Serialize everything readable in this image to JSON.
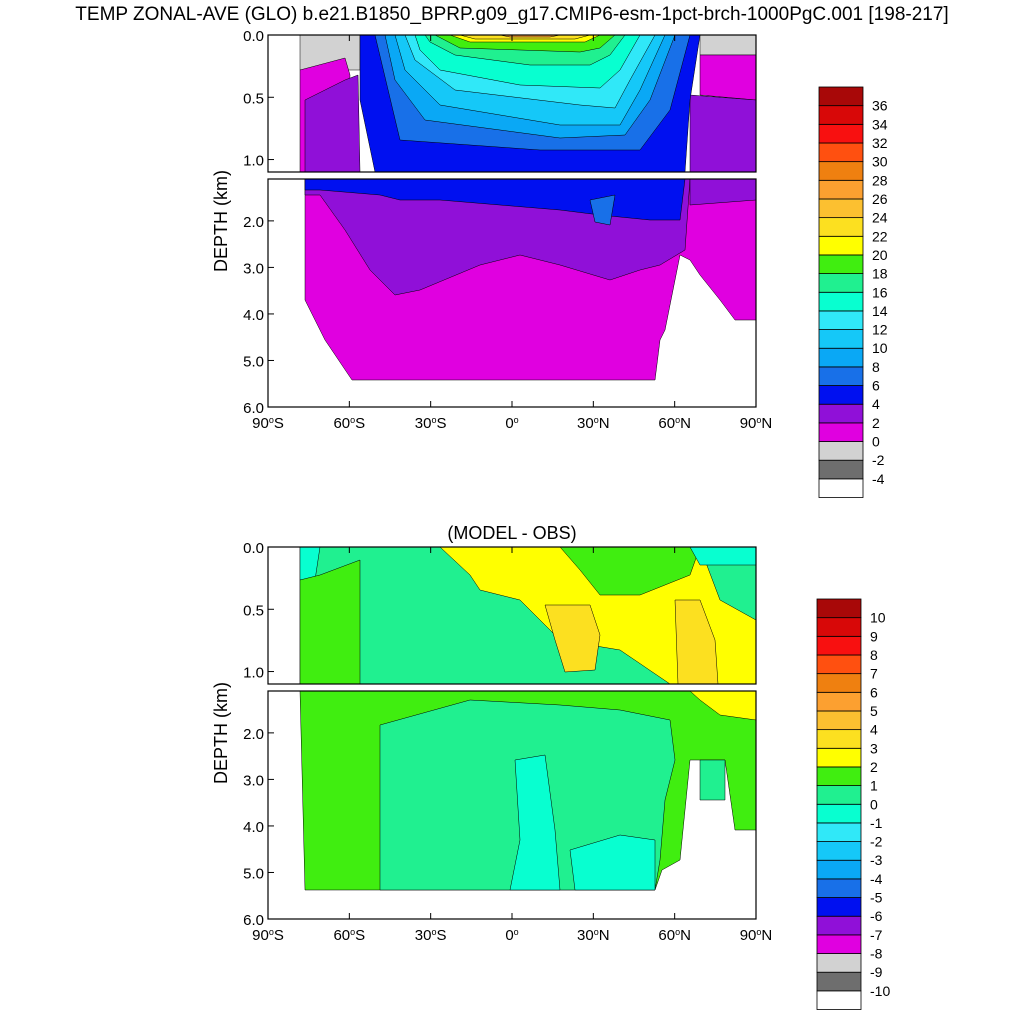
{
  "title": "TEMP ZONAL-AVE (GLO) b.e21.B1850_BPRP.g09_g17.CMIP6-esm-1pct-brch-1000PgC.001 [198-217]",
  "chart_data": [
    {
      "type": "heatmap",
      "title": "",
      "xlabel": "",
      "ylabel": "DEPTH (km)",
      "x_ticks": [
        "90°S",
        "60°S",
        "30°S",
        "0°",
        "30°N",
        "60°N",
        "90°N"
      ],
      "y_ticks_upper": [
        "0.0",
        "0.5",
        "1.0"
      ],
      "y_ticks_lower": [
        "2.0",
        "3.0",
        "4.0",
        "5.0",
        "6.0"
      ],
      "xlim": [
        -90,
        90
      ],
      "ylim_km": [
        0,
        6
      ],
      "colorbar": {
        "labels": [
          "-4",
          "-2",
          "0",
          "2",
          "4",
          "6",
          "8",
          "10",
          "12",
          "14",
          "16",
          "18",
          "20",
          "22",
          "24",
          "26",
          "28",
          "30",
          "32",
          "34",
          "36"
        ],
        "colors": [
          "#ffffff",
          "#6e6e6e",
          "#d2d2d2",
          "#e000e0",
          "#9010d8",
          "#0010f0",
          "#1870e8",
          "#0aa8f5",
          "#15c8f8",
          "#30e8f8",
          "#08ffd0",
          "#20f090",
          "#40ee10",
          "#ffff00",
          "#fce020",
          "#fcc030",
          "#fca030",
          "#ef8010",
          "#ff5010",
          "#f81010",
          "#d80808",
          "#a80808"
        ]
      }
    },
    {
      "type": "heatmap",
      "title": "(MODEL - OBS)",
      "xlabel": "",
      "ylabel": "DEPTH (km)",
      "x_ticks": [
        "90°S",
        "60°S",
        "30°S",
        "0°",
        "30°N",
        "60°N",
        "90°N"
      ],
      "y_ticks_upper": [
        "0.0",
        "0.5",
        "1.0"
      ],
      "y_ticks_lower": [
        "2.0",
        "3.0",
        "4.0",
        "5.0",
        "6.0"
      ],
      "xlim": [
        -90,
        90
      ],
      "ylim_km": [
        0,
        6
      ],
      "colorbar": {
        "labels": [
          "-10",
          "-9",
          "-8",
          "-7",
          "-6",
          "-5",
          "-4",
          "-3",
          "-2",
          "-1",
          "0",
          "1",
          "2",
          "3",
          "4",
          "5",
          "6",
          "7",
          "8",
          "9",
          "10"
        ],
        "colors": [
          "#ffffff",
          "#6e6e6e",
          "#d2d2d2",
          "#e000e0",
          "#9010d8",
          "#0010f0",
          "#1870e8",
          "#0aa8f5",
          "#15c8f8",
          "#30e8f8",
          "#08ffd0",
          "#20f090",
          "#40ee10",
          "#ffff00",
          "#fce020",
          "#fcc030",
          "#fca030",
          "#ef8010",
          "#ff5010",
          "#f81010",
          "#d80808",
          "#a80808"
        ]
      }
    }
  ]
}
